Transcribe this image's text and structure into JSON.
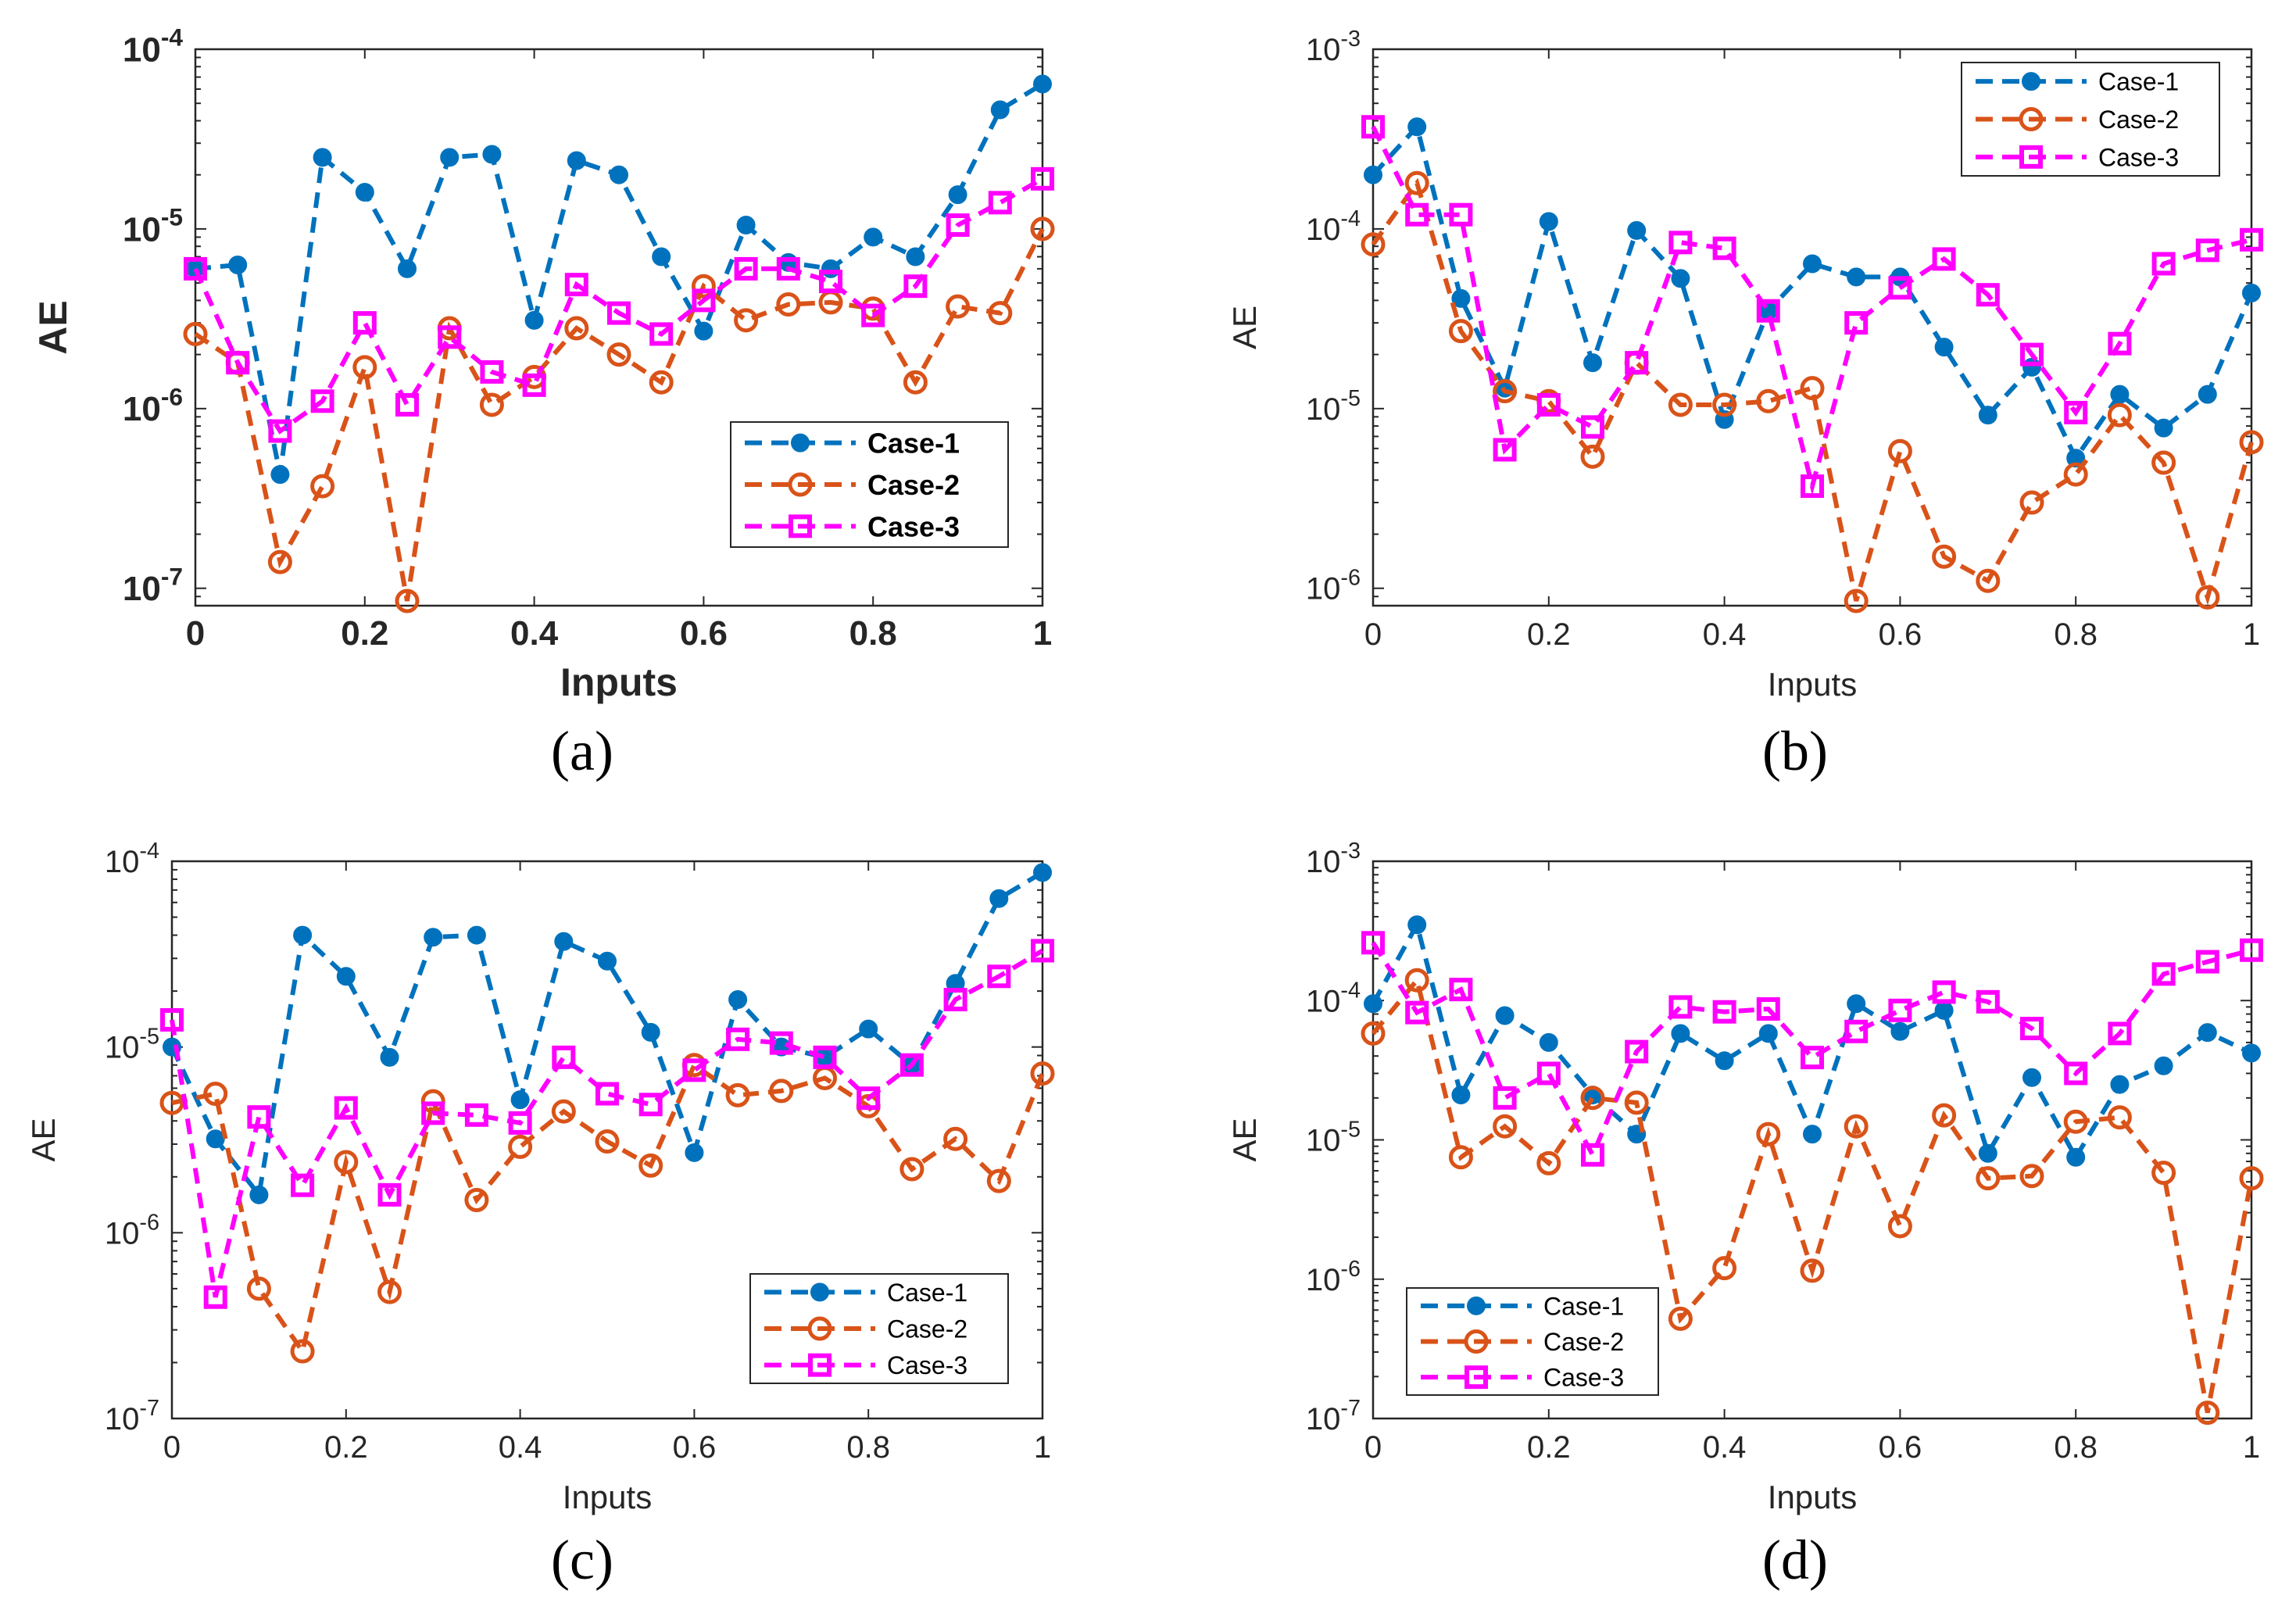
{
  "colors": {
    "case1": "#0072BD",
    "case2": "#D95319",
    "case3": "#FF00FF",
    "axis": "#262626"
  },
  "chart_data": [
    {
      "type": "line",
      "caption": "(a)",
      "bold_text": true,
      "xlabel": "Inputs",
      "ylabel": "AE",
      "x_scale": "linear",
      "y_scale": "log",
      "xlim": [
        0,
        1
      ],
      "ylim": [
        8e-08,
        0.0001
      ],
      "xticks": [
        0,
        0.2,
        0.4,
        0.6,
        0.8,
        1
      ],
      "xtick_labels": [
        "0",
        "0.2",
        "0.4",
        "0.6",
        "0.8",
        "1"
      ],
      "ytick_exponents": [
        -7,
        -6,
        -5,
        -4
      ],
      "ytick_base": "10",
      "legend_position": "lower-right",
      "x": [
        0,
        0.05,
        0.1,
        0.15,
        0.2,
        0.25,
        0.3,
        0.35,
        0.4,
        0.45,
        0.5,
        0.55,
        0.6,
        0.65,
        0.7,
        0.75,
        0.8,
        0.85,
        0.9,
        0.95,
        1
      ],
      "series": [
        {
          "name": "Case-1",
          "marker": "dot",
          "values": [
            6e-06,
            6.3e-06,
            4.3e-07,
            2.5e-05,
            1.6e-05,
            6e-06,
            2.5e-05,
            2.6e-05,
            3.1e-06,
            2.4e-05,
            2e-05,
            7e-06,
            2.7e-06,
            1.05e-05,
            6.5e-06,
            6e-06,
            9e-06,
            7e-06,
            1.55e-05,
            4.6e-05,
            6.4e-05
          ]
        },
        {
          "name": "Case-2",
          "marker": "circle",
          "values": [
            2.6e-06,
            1.8e-06,
            1.4e-07,
            3.7e-07,
            1.7e-06,
            8.5e-08,
            2.8e-06,
            1.05e-06,
            1.5e-06,
            2.8e-06,
            2e-06,
            1.4e-06,
            4.8e-06,
            3.1e-06,
            3.8e-06,
            3.9e-06,
            3.6e-06,
            1.4e-06,
            3.7e-06,
            3.4e-06,
            1e-05
          ]
        },
        {
          "name": "Case-3",
          "marker": "square",
          "values": [
            6e-06,
            1.8e-06,
            7.5e-07,
            1.1e-06,
            3e-06,
            1.05e-06,
            2.5e-06,
            1.6e-06,
            1.35e-06,
            4.9e-06,
            3.4e-06,
            2.6e-06,
            4e-06,
            6e-06,
            6e-06,
            5.1e-06,
            3.3e-06,
            4.8e-06,
            1.05e-05,
            1.4e-05,
            1.9e-05
          ]
        }
      ]
    },
    {
      "type": "line",
      "caption": "(b)",
      "bold_text": false,
      "xlabel": "Inputs",
      "ylabel": "AE",
      "x_scale": "linear",
      "y_scale": "log",
      "xlim": [
        0,
        1
      ],
      "ylim": [
        8e-07,
        0.001
      ],
      "xticks": [
        0,
        0.2,
        0.4,
        0.6,
        0.8,
        1
      ],
      "xtick_labels": [
        "0",
        "0.2",
        "0.4",
        "0.6",
        "0.8",
        "1"
      ],
      "ytick_exponents": [
        -6,
        -5,
        -4,
        -3
      ],
      "ytick_base": "10",
      "legend_position": "top-right",
      "x": [
        0,
        0.05,
        0.1,
        0.15,
        0.2,
        0.25,
        0.3,
        0.35,
        0.4,
        0.45,
        0.5,
        0.55,
        0.6,
        0.65,
        0.7,
        0.75,
        0.8,
        0.85,
        0.9,
        0.95,
        1
      ],
      "series": [
        {
          "name": "Case-1",
          "marker": "dot",
          "values": [
            0.0002,
            0.00037,
            4.1e-05,
            1.3e-05,
            0.00011,
            1.8e-05,
            9.8e-05,
            5.3e-05,
            8.7e-06,
            3.5e-05,
            6.4e-05,
            5.4e-05,
            5.4e-05,
            2.2e-05,
            9.2e-06,
            1.7e-05,
            5.3e-06,
            1.2e-05,
            7.8e-06,
            1.2e-05,
            4.4e-05
          ]
        },
        {
          "name": "Case-2",
          "marker": "circle",
          "values": [
            8.2e-05,
            0.00018,
            2.7e-05,
            1.25e-05,
            1.1e-05,
            5.4e-06,
            1.8e-05,
            1.05e-05,
            1.05e-05,
            1.1e-05,
            1.3e-05,
            8.5e-07,
            5.8e-06,
            1.5e-06,
            1.1e-06,
            3e-06,
            4.3e-06,
            9.2e-06,
            5e-06,
            8.9e-07,
            6.5e-06
          ]
        },
        {
          "name": "Case-3",
          "marker": "square",
          "values": [
            0.00037,
            0.00012,
            0.00012,
            5.9e-06,
            1.05e-05,
            7.9e-06,
            1.8e-05,
            8.4e-05,
            7.8e-05,
            3.5e-05,
            3.7e-06,
            3e-05,
            4.7e-05,
            6.8e-05,
            4.3e-05,
            2e-05,
            9.5e-06,
            2.3e-05,
            6.4e-05,
            7.6e-05,
            8.7e-05
          ]
        }
      ]
    },
    {
      "type": "line",
      "caption": "(c)",
      "bold_text": false,
      "xlabel": "Inputs",
      "ylabel": "AE",
      "x_scale": "linear",
      "y_scale": "log",
      "xlim": [
        0,
        1
      ],
      "ylim": [
        1e-07,
        0.0001
      ],
      "xticks": [
        0,
        0.2,
        0.4,
        0.6,
        0.8,
        1
      ],
      "xtick_labels": [
        "0",
        "0.2",
        "0.4",
        "0.6",
        "0.8",
        "1"
      ],
      "ytick_exponents": [
        -7,
        -6,
        -5,
        -4
      ],
      "ytick_base": "10",
      "legend_position": "lower-right",
      "x": [
        0,
        0.05,
        0.1,
        0.15,
        0.2,
        0.25,
        0.3,
        0.35,
        0.4,
        0.45,
        0.5,
        0.55,
        0.6,
        0.65,
        0.7,
        0.75,
        0.8,
        0.85,
        0.9,
        0.95,
        1
      ],
      "series": [
        {
          "name": "Case-1",
          "marker": "dot",
          "values": [
            1e-05,
            3.2e-06,
            1.6e-06,
            4e-05,
            2.4e-05,
            8.8e-06,
            3.9e-05,
            4e-05,
            5.2e-06,
            3.7e-05,
            2.9e-05,
            1.2e-05,
            2.7e-06,
            1.8e-05,
            1e-05,
            8.8e-06,
            1.25e-05,
            8e-06,
            2.2e-05,
            6.3e-05,
            8.7e-05
          ]
        },
        {
          "name": "Case-2",
          "marker": "circle",
          "values": [
            5e-06,
            5.6e-06,
            5e-07,
            2.3e-07,
            2.4e-06,
            4.8e-07,
            5.1e-06,
            1.5e-06,
            2.9e-06,
            4.5e-06,
            3.1e-06,
            2.3e-06,
            8e-06,
            5.5e-06,
            5.8e-06,
            6.8e-06,
            4.8e-06,
            2.2e-06,
            3.2e-06,
            1.9e-06,
            7.2e-06
          ]
        },
        {
          "name": "Case-3",
          "marker": "square",
          "values": [
            1.4e-05,
            4.5e-07,
            4.2e-06,
            1.8e-06,
            4.7e-06,
            1.6e-06,
            4.4e-06,
            4.3e-06,
            3.9e-06,
            8.8e-06,
            5.6e-06,
            4.9e-06,
            7.5e-06,
            1.1e-05,
            1.05e-05,
            8.8e-06,
            5.3e-06,
            8e-06,
            1.8e-05,
            2.4e-05,
            3.3e-05
          ]
        }
      ]
    },
    {
      "type": "line",
      "caption": "(d)",
      "bold_text": false,
      "xlabel": "Inputs",
      "ylabel": "AE",
      "x_scale": "linear",
      "y_scale": "log",
      "xlim": [
        0,
        1
      ],
      "ylim": [
        1e-07,
        0.001
      ],
      "xticks": [
        0,
        0.2,
        0.4,
        0.6,
        0.8,
        1
      ],
      "xtick_labels": [
        "0",
        "0.2",
        "0.4",
        "0.6",
        "0.8",
        "1"
      ],
      "ytick_exponents": [
        -7,
        -6,
        -5,
        -4,
        -3
      ],
      "ytick_base": "10",
      "legend_position": "lower-left",
      "x": [
        0,
        0.05,
        0.1,
        0.15,
        0.2,
        0.25,
        0.3,
        0.35,
        0.4,
        0.45,
        0.5,
        0.55,
        0.6,
        0.65,
        0.7,
        0.75,
        0.8,
        0.85,
        0.9,
        0.95,
        1
      ],
      "series": [
        {
          "name": "Case-1",
          "marker": "dot",
          "values": [
            9.5e-05,
            0.00035,
            2.1e-05,
            7.8e-05,
            5e-05,
            2.1e-05,
            1.1e-05,
            5.8e-05,
            3.7e-05,
            5.8e-05,
            1.1e-05,
            9.5e-05,
            6e-05,
            8.5e-05,
            8e-06,
            2.8e-05,
            7.5e-06,
            2.5e-05,
            3.4e-05,
            5.9e-05,
            4.2e-05
          ]
        },
        {
          "name": "Case-2",
          "marker": "circle",
          "values": [
            5.8e-05,
            0.00014,
            7.5e-06,
            1.25e-05,
            6.8e-06,
            2e-05,
            1.85e-05,
            5.2e-07,
            1.2e-06,
            1.1e-05,
            1.15e-06,
            1.25e-05,
            2.4e-06,
            1.5e-05,
            5.3e-06,
            5.5e-06,
            1.35e-05,
            1.45e-05,
            5.8e-06,
            1.1e-07,
            5.3e-06
          ]
        },
        {
          "name": "Case-3",
          "marker": "square",
          "values": [
            0.00026,
            8.2e-05,
            0.00012,
            2e-05,
            3e-05,
            7.8e-06,
            4.3e-05,
            9e-05,
            8.3e-05,
            8.7e-05,
            3.9e-05,
            6e-05,
            8.5e-05,
            0.000115,
            9.8e-05,
            6.3e-05,
            3e-05,
            5.8e-05,
            0.000155,
            0.00019,
            0.00023
          ]
        }
      ]
    }
  ]
}
